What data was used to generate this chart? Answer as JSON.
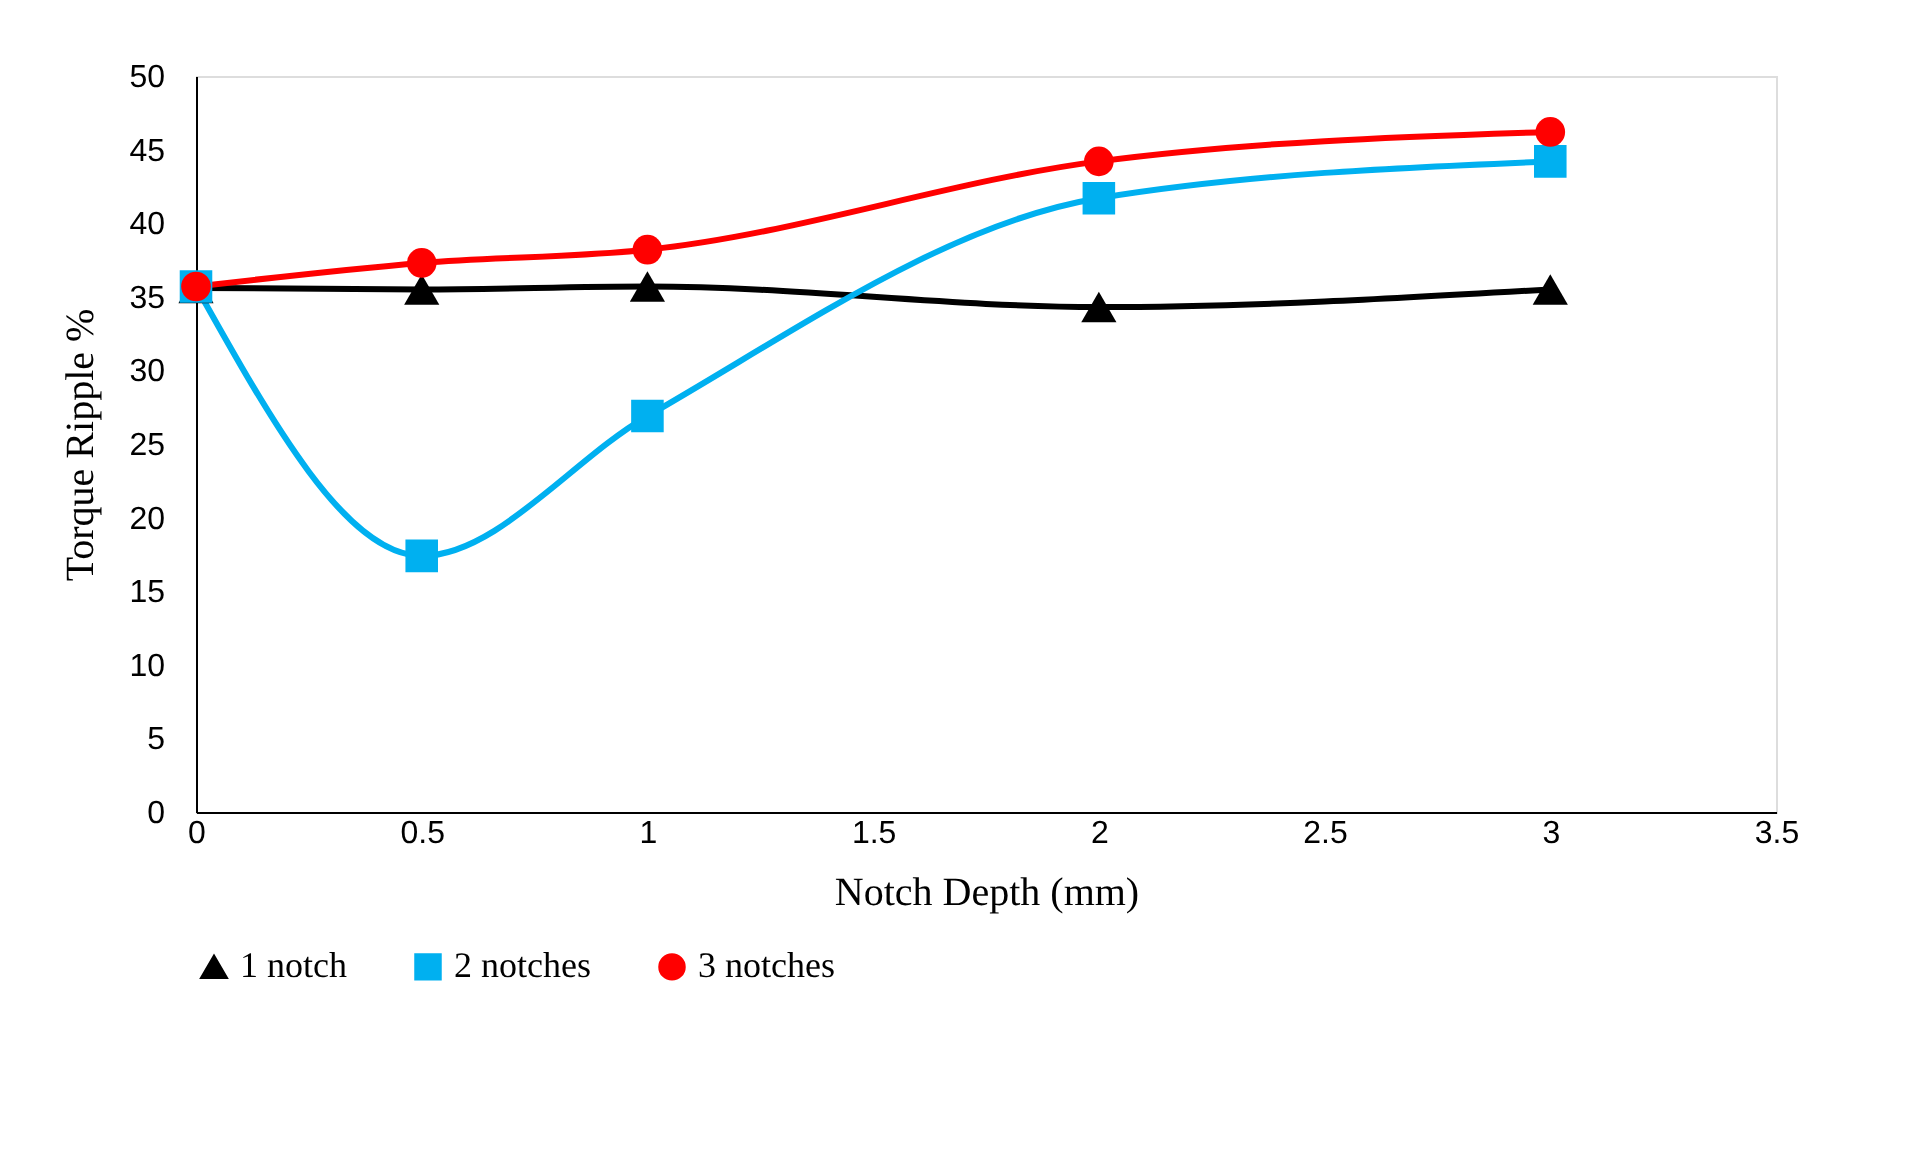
{
  "chart_data": {
    "type": "line",
    "xlabel": "Notch Depth (mm)",
    "ylabel": "Torque Ripple %",
    "x": [
      0,
      0.5,
      1,
      2,
      3
    ],
    "series": [
      {
        "name": "1 notch",
        "color": "#000000",
        "marker": "triangle",
        "values": [
          35.6,
          35.5,
          35.7,
          34.3,
          35.5
        ]
      },
      {
        "name": "2 notches",
        "color": "#00b0f0",
        "marker": "square",
        "values": [
          35.7,
          17.4,
          26.9,
          41.7,
          44.2
        ]
      },
      {
        "name": "3 notches",
        "color": "#ff0000",
        "marker": "circle",
        "values": [
          35.7,
          37.3,
          38.2,
          44.2,
          46.2
        ]
      }
    ],
    "xlim": [
      0,
      3.5
    ],
    "xticks": [
      0,
      0.5,
      1,
      1.5,
      2,
      2.5,
      3,
      3.5
    ],
    "ylim": [
      0,
      50
    ],
    "yticks": [
      0,
      5,
      10,
      15,
      20,
      25,
      30,
      35,
      40,
      45,
      50
    ],
    "grid": false,
    "legend": "bottom",
    "line_style": "solid"
  }
}
